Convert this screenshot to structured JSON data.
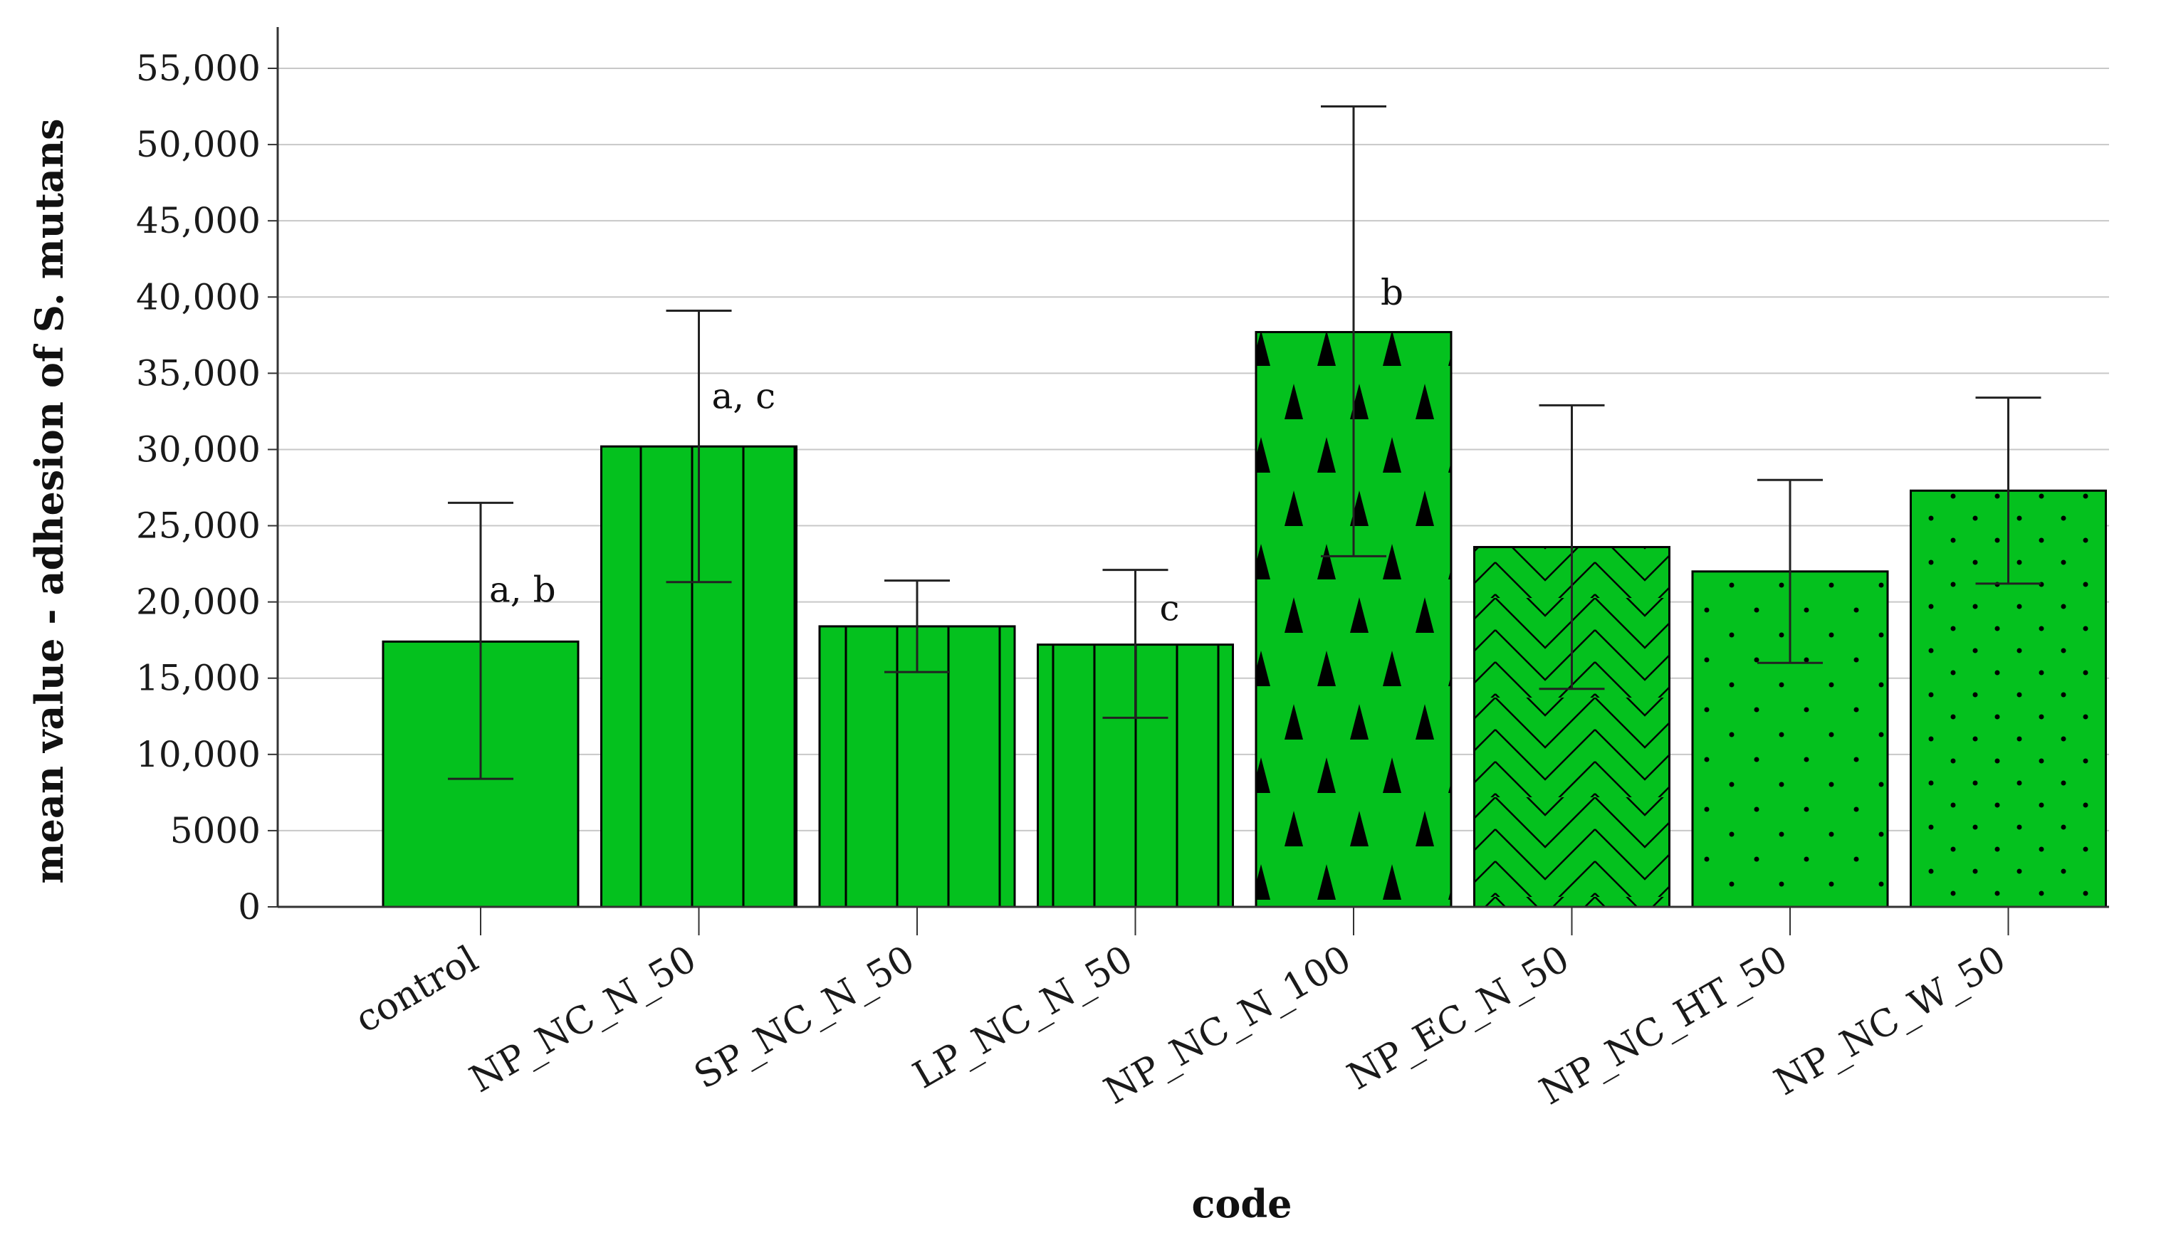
{
  "chart_data": {
    "type": "bar",
    "title": "",
    "xlabel": "code",
    "ylabel": "mean value - adhesion of S. mutans",
    "ylim": [
      0,
      55000
    ],
    "y_ticks": [
      0,
      5000,
      10000,
      15000,
      20000,
      25000,
      30000,
      35000,
      40000,
      45000,
      50000,
      55000
    ],
    "y_tick_labels": [
      "0",
      "5000",
      "10,000",
      "15,000",
      "20,000",
      "25,000",
      "30,000",
      "35,000",
      "40,000",
      "45,000",
      "50,000",
      "55,000"
    ],
    "grid": true,
    "bar_color": "#04c11e",
    "categories": [
      "control",
      "NP_NC_N_50",
      "SP_NC_N_50",
      "LP_NC_N_50",
      "NP_NC_N_100",
      "NP_EC_N_50",
      "NP_NC_HT_50",
      "NP_NC_W_50"
    ],
    "values": [
      17400,
      30200,
      18400,
      17200,
      37700,
      23600,
      22000,
      27300
    ],
    "error_low": [
      8400,
      21300,
      15400,
      12400,
      23000,
      14300,
      16000,
      21200
    ],
    "error_high": [
      26500,
      39100,
      21400,
      22100,
      52500,
      32900,
      28000,
      33400
    ],
    "patterns": [
      "solid",
      "vlines-wide",
      "vlines-wide",
      "vlines-narrow",
      "triangles",
      "herringbone",
      "dots-sparse",
      "dots-dense"
    ],
    "annotations": [
      {
        "category": "control",
        "text": "a, b"
      },
      {
        "category": "NP_NC_N_50",
        "text": "a, c"
      },
      {
        "category": "LP_NC_N_50",
        "text": "c"
      },
      {
        "category": "NP_NC_N_100",
        "text": "b"
      }
    ]
  }
}
